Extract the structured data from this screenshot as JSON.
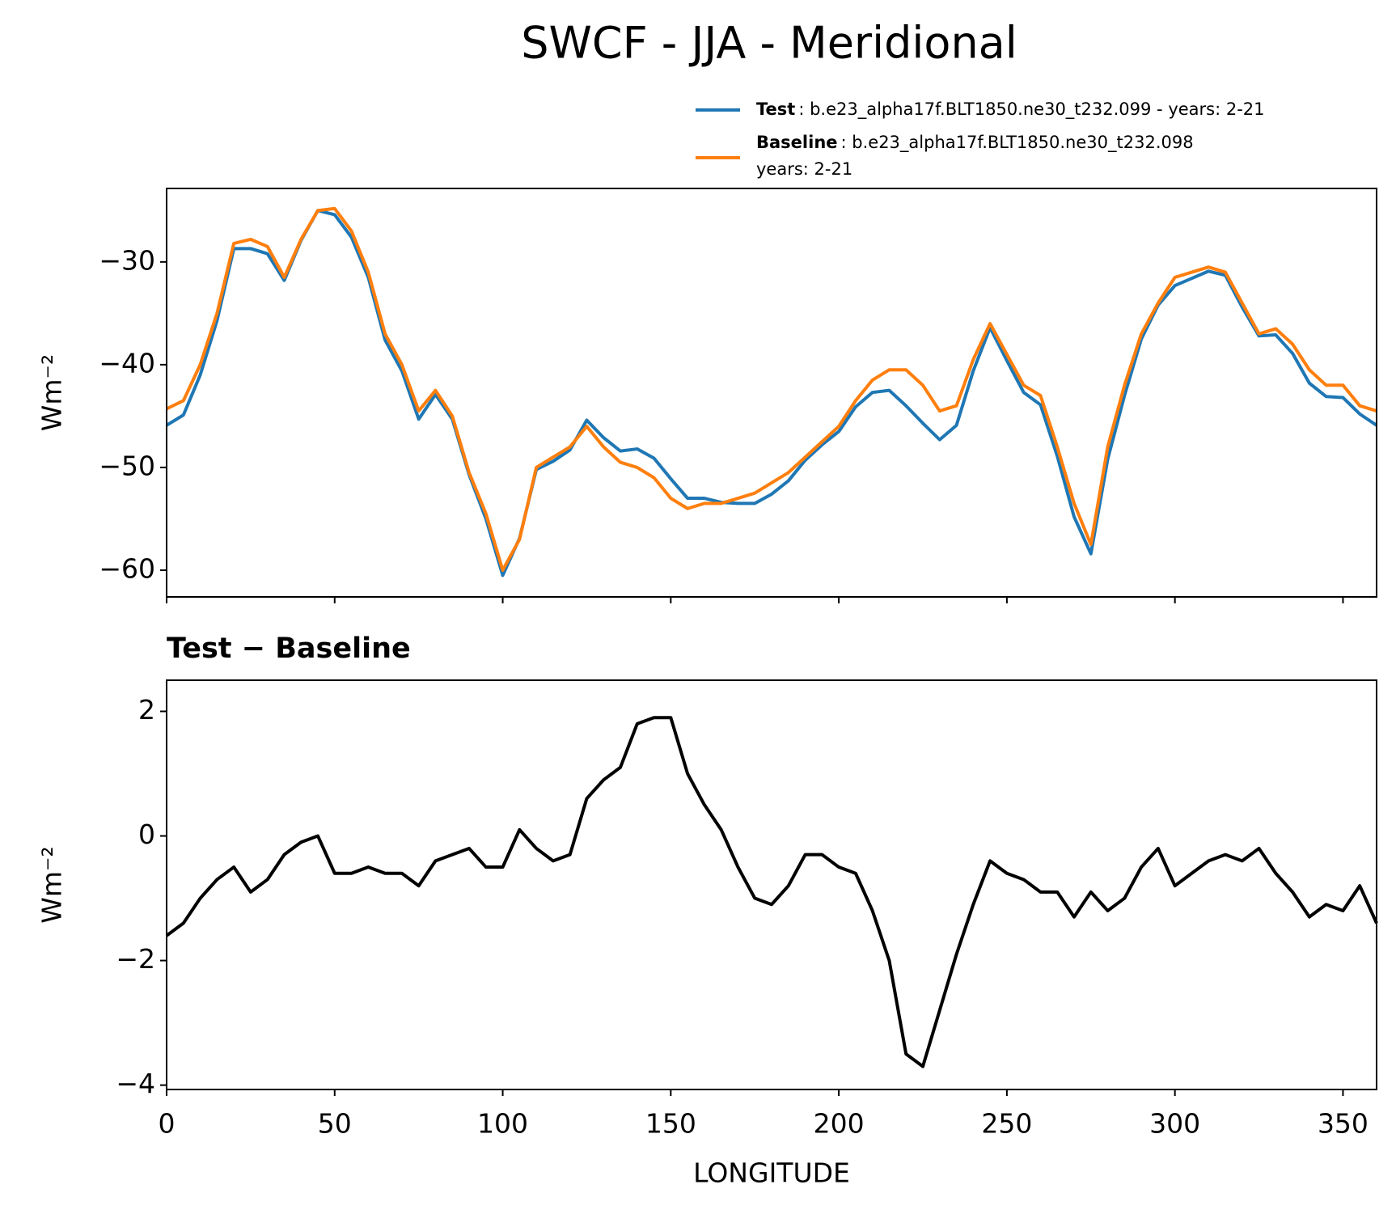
{
  "chart_data": [
    {
      "type": "line",
      "title": "SWCF - JJA - Meridional",
      "y_label": "Wm⁻²",
      "x": [
        0,
        5,
        10,
        15,
        20,
        25,
        30,
        35,
        40,
        45,
        50,
        55,
        60,
        65,
        70,
        75,
        80,
        85,
        90,
        95,
        100,
        105,
        110,
        115,
        120,
        125,
        130,
        135,
        140,
        145,
        150,
        155,
        160,
        165,
        170,
        175,
        180,
        185,
        190,
        195,
        200,
        205,
        210,
        215,
        220,
        225,
        230,
        235,
        240,
        245,
        250,
        255,
        260,
        265,
        270,
        275,
        280,
        285,
        290,
        295,
        300,
        305,
        310,
        315,
        320,
        325,
        330,
        335,
        340,
        345,
        350,
        355,
        360
      ],
      "series": [
        {
          "name": "Test",
          "legend_text": [
            ": b.e23_alpha17f.BLT1850.ne30_t232.099 - years: 2-21"
          ],
          "color": "#1f77b4",
          "values": [
            -45.9,
            -44.9,
            -41,
            -35.7,
            -28.7,
            -28.7,
            -29.2,
            -31.8,
            -27.9,
            -25,
            -25.4,
            -27.6,
            -31.5,
            -37.6,
            -40.6,
            -45.3,
            -42.9,
            -45.3,
            -50.7,
            -55,
            -60.5,
            -56.9,
            -50.2,
            -49.4,
            -48.3,
            -45.4,
            -47.1,
            -48.4,
            -48.2,
            -49.1,
            -51.1,
            -53,
            -53,
            -53.4,
            -53.5,
            -53.5,
            -52.6,
            -51.3,
            -49.3,
            -47.8,
            -46.5,
            -44.1,
            -42.7,
            -42.5,
            -44,
            -45.7,
            -47.3,
            -45.9,
            -40.6,
            -36.4,
            -39.6,
            -42.7,
            -43.9,
            -48.9,
            -54.8,
            -58.4,
            -49.2,
            -43,
            -37.5,
            -34.2,
            -32.3,
            -31.6,
            -30.9,
            -31.3,
            -34.4,
            -37.2,
            -37.1,
            -38.9,
            -41.8,
            -43.1,
            -43.2,
            -44.8,
            -45.9
          ]
        },
        {
          "name": "Baseline",
          "legend_text": [
            ": b.e23_alpha17f.BLT1850.ne30_t232.098",
            "years: 2-21"
          ],
          "color": "#ff7f0e",
          "values": [
            -44.3,
            -43.5,
            -40,
            -35,
            -28.2,
            -27.8,
            -28.5,
            -31.5,
            -27.8,
            -25,
            -24.8,
            -27,
            -31,
            -37,
            -40,
            -44.5,
            -42.5,
            -45,
            -50.5,
            -54.5,
            -60,
            -57,
            -50,
            -49,
            -48,
            -46,
            -48,
            -49.5,
            -50,
            -51,
            -53,
            -54,
            -53.5,
            -53.5,
            -53,
            -52.5,
            -51.5,
            -50.5,
            -49,
            -47.5,
            -46,
            -43.5,
            -41.5,
            -40.5,
            -40.5,
            -42,
            -44.5,
            -44,
            -39.5,
            -36,
            -39,
            -42,
            -43,
            -48,
            -53.5,
            -57.5,
            -48,
            -42,
            -37,
            -34,
            -31.5,
            -31,
            -30.5,
            -31,
            -34,
            -37,
            -36.5,
            -38,
            -40.5,
            -42,
            -42,
            -44,
            -44.5
          ]
        }
      ],
      "xlim": [
        0,
        360
      ],
      "xticks": [
        0,
        50,
        100,
        150,
        200,
        250,
        300,
        350
      ],
      "ylim": [
        -62.6,
        -22.85
      ],
      "yticks": [
        {
          "value": -60,
          "label": "−60"
        },
        {
          "value": -50,
          "label": "−50"
        },
        {
          "value": -40,
          "label": "−40"
        },
        {
          "value": -30,
          "label": "−30"
        }
      ],
      "legend": "upper right"
    },
    {
      "type": "line",
      "subtitle": "Test − Baseline",
      "y_label": "Wm⁻²",
      "x_label": "LONGITUDE",
      "x": [
        0,
        5,
        10,
        15,
        20,
        25,
        30,
        35,
        40,
        45,
        50,
        55,
        60,
        65,
        70,
        75,
        80,
        85,
        90,
        95,
        100,
        105,
        110,
        115,
        120,
        125,
        130,
        135,
        140,
        145,
        150,
        155,
        160,
        165,
        170,
        175,
        180,
        185,
        190,
        195,
        200,
        205,
        210,
        215,
        220,
        225,
        230,
        235,
        240,
        245,
        250,
        255,
        260,
        265,
        270,
        275,
        280,
        285,
        290,
        295,
        300,
        305,
        310,
        315,
        320,
        325,
        330,
        335,
        340,
        345,
        350,
        355,
        360
      ],
      "series": [
        {
          "color": "#000000",
          "values": [
            -1.6,
            -1.4,
            -1.0,
            -0.7,
            -0.5,
            -0.9,
            -0.7,
            -0.3,
            -0.1,
            0,
            -0.6,
            -0.6,
            -0.5,
            -0.6,
            -0.6,
            -0.8,
            -0.4,
            -0.3,
            -0.2,
            -0.5,
            -0.5,
            0.1,
            -0.2,
            -0.4,
            -0.3,
            0.6,
            0.9,
            1.1,
            1.8,
            1.9,
            1.9,
            1.0,
            0.5,
            0.1,
            -0.5,
            -1.0,
            -1.1,
            -0.8,
            -0.3,
            -0.3,
            -0.5,
            -0.6,
            -1.2,
            -2.0,
            -3.5,
            -3.7,
            -2.8,
            -1.9,
            -1.1,
            -0.4,
            -0.6,
            -0.7,
            -0.9,
            -0.9,
            -1.3,
            -0.9,
            -1.2,
            -1.0,
            -0.5,
            -0.2,
            -0.8,
            -0.6,
            -0.4,
            -0.3,
            -0.4,
            -0.2,
            -0.6,
            -0.9,
            -1.3,
            -1.1,
            -1.2,
            -0.8,
            -1.4
          ]
        }
      ],
      "xlim": [
        0,
        360
      ],
      "xticks": [
        0,
        50,
        100,
        150,
        200,
        250,
        300,
        350
      ],
      "ylim": [
        -4.07,
        2.5
      ],
      "yticks": [
        {
          "value": -4,
          "label": "−4"
        },
        {
          "value": -2,
          "label": "−2"
        },
        0,
        2
      ]
    }
  ]
}
